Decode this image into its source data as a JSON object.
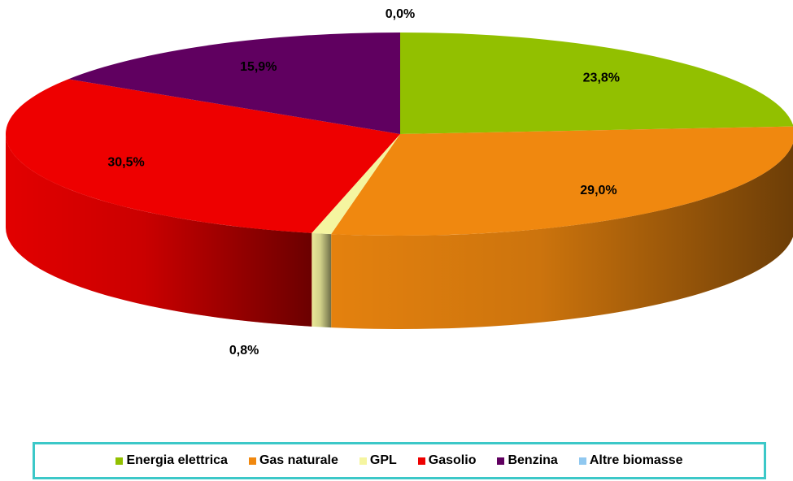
{
  "chart_data": {
    "type": "pie",
    "categories": [
      "Energia elettrica",
      "Gas naturale",
      "GPL",
      "Gasolio",
      "Benzina",
      "Altre biomasse"
    ],
    "values": [
      23.8,
      29.0,
      0.8,
      30.5,
      15.9,
      0.0
    ],
    "value_labels": [
      "23,8%",
      "29,0%",
      "0,8%",
      "30,5%",
      "15,9%",
      "0,0%"
    ],
    "colors": [
      "#92c000",
      "#f0880f",
      "#f5f5a0",
      "#ee0000",
      "#600060",
      "#90c8f0"
    ],
    "legend": "bottom"
  }
}
